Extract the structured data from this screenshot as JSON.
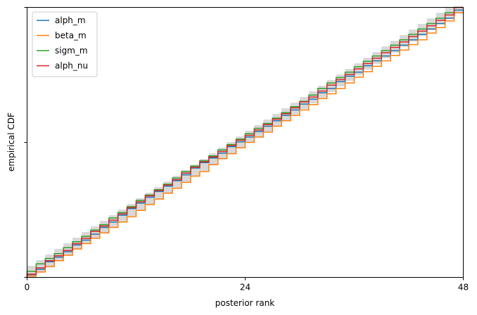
{
  "chart_data": {
    "type": "line",
    "xlabel": "posterior rank",
    "ylabel": "empirical CDF",
    "xlim": [
      0,
      48
    ],
    "ylim": [
      0,
      1
    ],
    "x_ticks": [
      0,
      24,
      48
    ],
    "x_tick_labels": [
      "0",
      "24",
      "48"
    ],
    "y_ticks": [
      0,
      0.5,
      1
    ],
    "step_width": 1,
    "legend": {
      "position": "top-left"
    },
    "band": {
      "name": "",
      "color": "#999999",
      "offset": 0.022
    },
    "series": [
      {
        "name": "alph_m",
        "color": "#1f77b4",
        "y": [
          0.01,
          0.03,
          0.058,
          0.075,
          0.095,
          0.12,
          0.138,
          0.16,
          0.185,
          0.205,
          0.23,
          0.255,
          0.275,
          0.297,
          0.318,
          0.338,
          0.358,
          0.38,
          0.405,
          0.425,
          0.442,
          0.46,
          0.484,
          0.502,
          0.52,
          0.54,
          0.56,
          0.58,
          0.6,
          0.62,
          0.642,
          0.66,
          0.684,
          0.7,
          0.725,
          0.745,
          0.76,
          0.784,
          0.802,
          0.82,
          0.84,
          0.86,
          0.88,
          0.9,
          0.92,
          0.94,
          0.96,
          0.99
        ]
      },
      {
        "name": "beta_m",
        "color": "#ff7f0e",
        "y": [
          0.005,
          0.02,
          0.04,
          0.062,
          0.082,
          0.105,
          0.125,
          0.145,
          0.165,
          0.185,
          0.205,
          0.225,
          0.248,
          0.27,
          0.29,
          0.312,
          0.33,
          0.352,
          0.375,
          0.392,
          0.418,
          0.44,
          0.458,
          0.48,
          0.5,
          0.52,
          0.538,
          0.56,
          0.58,
          0.6,
          0.62,
          0.64,
          0.662,
          0.68,
          0.7,
          0.72,
          0.742,
          0.762,
          0.782,
          0.802,
          0.822,
          0.842,
          0.862,
          0.88,
          0.905,
          0.925,
          0.95,
          0.98
        ]
      },
      {
        "name": "sigm_m",
        "color": "#2ca02c",
        "y": [
          0.022,
          0.05,
          0.07,
          0.088,
          0.11,
          0.132,
          0.152,
          0.175,
          0.195,
          0.22,
          0.24,
          0.262,
          0.285,
          0.305,
          0.325,
          0.345,
          0.368,
          0.392,
          0.412,
          0.432,
          0.45,
          0.472,
          0.492,
          0.512,
          0.532,
          0.552,
          0.57,
          0.59,
          0.61,
          0.632,
          0.652,
          0.675,
          0.7,
          0.72,
          0.74,
          0.76,
          0.78,
          0.8,
          0.82,
          0.84,
          0.86,
          0.88,
          0.9,
          0.92,
          0.94,
          0.96,
          0.98,
          1.0
        ]
      },
      {
        "name": "alph_nu",
        "color": "#d62728",
        "y": [
          0.012,
          0.035,
          0.062,
          0.08,
          0.1,
          0.125,
          0.145,
          0.17,
          0.19,
          0.212,
          0.235,
          0.258,
          0.28,
          0.302,
          0.322,
          0.342,
          0.362,
          0.386,
          0.408,
          0.428,
          0.446,
          0.466,
          0.488,
          0.508,
          0.526,
          0.546,
          0.566,
          0.586,
          0.606,
          0.628,
          0.65,
          0.668,
          0.69,
          0.712,
          0.732,
          0.752,
          0.772,
          0.792,
          0.812,
          0.832,
          0.852,
          0.872,
          0.892,
          0.912,
          0.932,
          0.952,
          0.972,
          1.0
        ]
      }
    ]
  }
}
